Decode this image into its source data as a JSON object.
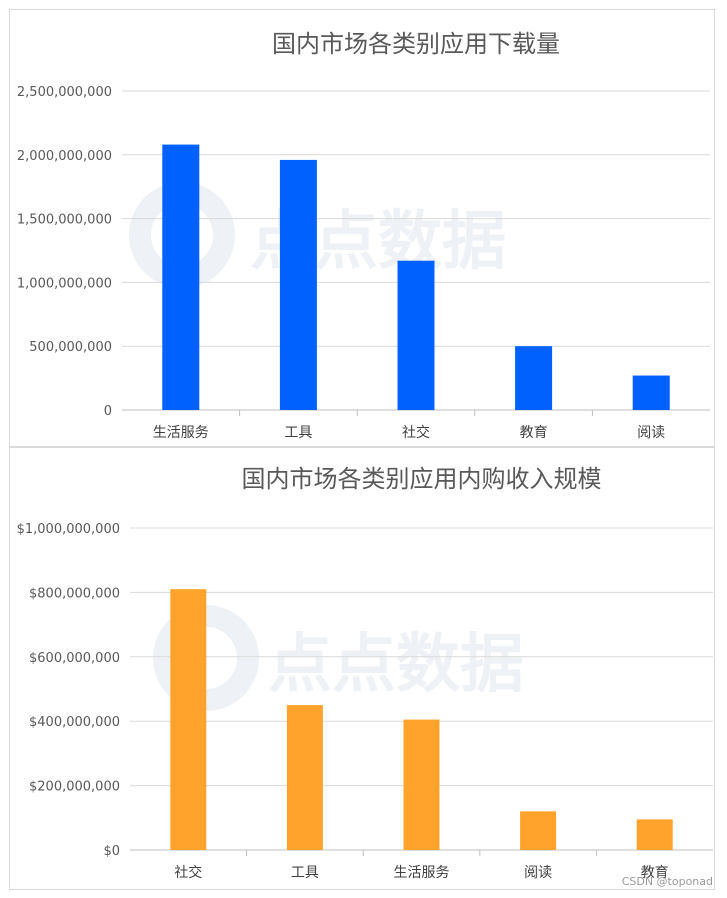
{
  "chart_data": [
    {
      "type": "bar",
      "title": "国内市场各类别应用下载量",
      "xlabel": "",
      "ylabel": "",
      "categories": [
        "生活服务",
        "工具",
        "社交",
        "教育",
        "阅读"
      ],
      "values": [
        2080000000,
        1960000000,
        1170000000,
        500000000,
        270000000
      ],
      "ylim": [
        0,
        2500000000
      ],
      "yticks": [
        0,
        500000000,
        1000000000,
        1500000000,
        2000000000,
        2500000000
      ],
      "ytick_labels": [
        "0",
        "500,000,000",
        "1,000,000,000",
        "1,500,000,000",
        "2,000,000,000",
        "2,500,000,000"
      ],
      "color": "#0061ff",
      "grid": true,
      "legend": "none"
    },
    {
      "type": "bar",
      "title": "国内市场各类别应用内购收入规模",
      "xlabel": "",
      "ylabel": "",
      "categories": [
        "社交",
        "工具",
        "生活服务",
        "阅读",
        "教育"
      ],
      "values": [
        810000000,
        450000000,
        405000000,
        120000000,
        95000000
      ],
      "ylim": [
        0,
        1000000000
      ],
      "yticks": [
        0,
        200000000,
        400000000,
        600000000,
        800000000,
        1000000000
      ],
      "ytick_labels": [
        "$0",
        "$200,000,000",
        "$400,000,000",
        "$600,000,000",
        "$800,000,000",
        "$1,000,000,000"
      ],
      "color": "#ffa32d",
      "grid": true,
      "legend": "none"
    }
  ],
  "watermark": "点点数据",
  "credit": "CSDN @toponad"
}
